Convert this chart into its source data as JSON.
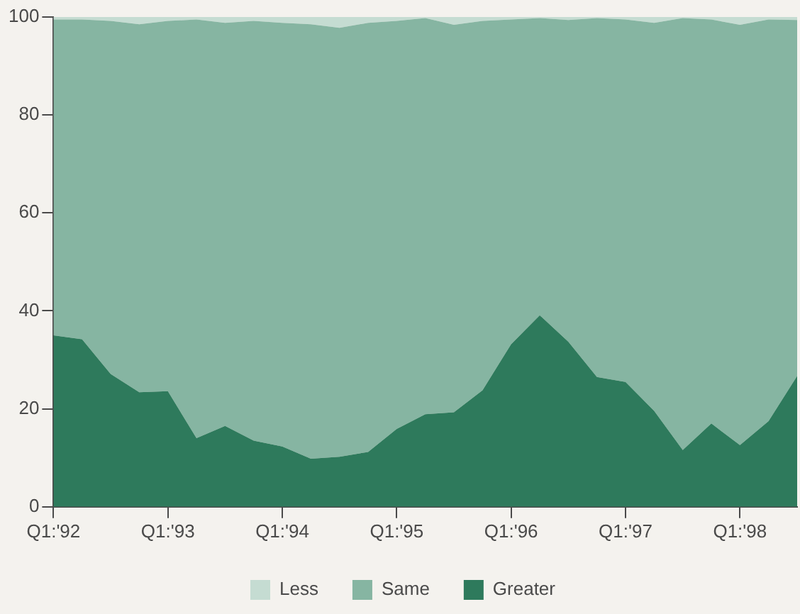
{
  "chart_data": {
    "type": "area",
    "stacked": true,
    "categories": [
      "Q1:'92",
      null,
      null,
      null,
      "Q1:'93",
      null,
      null,
      null,
      "Q1:'94",
      null,
      null,
      null,
      "Q1:'95",
      null,
      null,
      null,
      "Q1:'96",
      null,
      null,
      null,
      "Q1:'97",
      null,
      null,
      null,
      "Q1:'98",
      null,
      null
    ],
    "series": [
      {
        "name": "Greater",
        "color": "#2e7a5c",
        "values": [
          35,
          34.2,
          27.1,
          23.4,
          23.6,
          14,
          16.5,
          13.5,
          12.3,
          9.8,
          10.2,
          11.2,
          15.9,
          18.9,
          19.3,
          23.8,
          33.2,
          39.1,
          33.7,
          26.5,
          25.5,
          19.6,
          11.6,
          17,
          12.6,
          17.5,
          26.7
        ]
      },
      {
        "name": "Same",
        "color": "#86b5a2",
        "values": [
          64.5,
          65.3,
          72.1,
          75.1,
          75.6,
          85.5,
          82.3,
          85.7,
          86.5,
          88.7,
          87.6,
          87.6,
          83.3,
          80.9,
          79.1,
          75.4,
          66.3,
          60.7,
          65.7,
          73.3,
          74.0,
          79.2,
          88.2,
          82.5,
          85.8,
          82.0,
          72.7
        ]
      },
      {
        "name": "Less",
        "color": "#c5dcd2",
        "values": [
          0.5,
          0.5,
          0.8,
          1.5,
          0.8,
          0.5,
          1.2,
          0.8,
          1.2,
          1.5,
          2.2,
          1.2,
          0.8,
          0.2,
          1.6,
          0.8,
          0.5,
          0.2,
          0.6,
          0.2,
          0.5,
          1.2,
          0.2,
          0.5,
          1.6,
          0.5,
          0.6
        ]
      }
    ],
    "ylim": [
      0,
      100
    ],
    "yticks": [
      0,
      20,
      40,
      60,
      80,
      100
    ],
    "grid": false,
    "legend": "bottom"
  }
}
